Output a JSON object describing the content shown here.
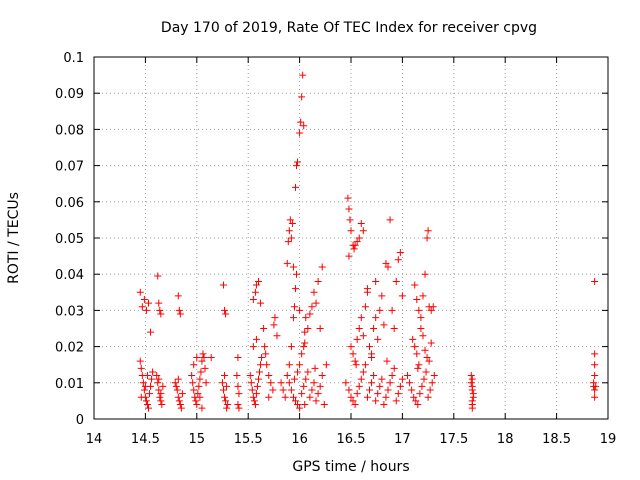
{
  "chart_data": {
    "type": "scatter",
    "title": "Day 170 of 2019, Rate Of TEC Index for receiver cpvg",
    "xlabel": "GPS time / hours",
    "ylabel": "ROTI / TECUs",
    "xlim": [
      14,
      19
    ],
    "ylim": [
      0,
      0.1
    ],
    "x_ticks": [
      14,
      14.5,
      15,
      15.5,
      16,
      16.5,
      17,
      17.5,
      18,
      18.5,
      19
    ],
    "x_tick_labels": [
      "14",
      "14.5",
      "15",
      "15.5",
      "16",
      "16.5",
      "17",
      "17.5",
      "18",
      "18.5",
      "19"
    ],
    "y_ticks": [
      0,
      0.01,
      0.02,
      0.03,
      0.04,
      0.05,
      0.06,
      0.07,
      0.08,
      0.09,
      0.1
    ],
    "y_tick_labels": [
      "0",
      "0.01",
      "0.02",
      "0.03",
      "0.04",
      "0.05",
      "0.06",
      "0.07",
      "0.08",
      "0.09",
      "0.1"
    ],
    "grid": true,
    "marker": "plus",
    "color": "#ff0000",
    "series": [
      {
        "name": "ROTI",
        "points": [
          [
            14.45,
            0.035
          ],
          [
            14.47,
            0.031
          ],
          [
            14.49,
            0.033
          ],
          [
            14.51,
            0.03
          ],
          [
            14.53,
            0.032
          ],
          [
            14.55,
            0.024
          ],
          [
            14.45,
            0.016
          ],
          [
            14.46,
            0.014
          ],
          [
            14.47,
            0.012
          ],
          [
            14.48,
            0.01
          ],
          [
            14.49,
            0.008
          ],
          [
            14.5,
            0.006
          ],
          [
            14.51,
            0.005
          ],
          [
            14.52,
            0.004
          ],
          [
            14.53,
            0.003
          ],
          [
            14.54,
            0.007
          ],
          [
            14.55,
            0.009
          ],
          [
            14.56,
            0.011
          ],
          [
            14.57,
            0.013
          ],
          [
            14.46,
            0.006
          ],
          [
            14.5,
            0.009
          ],
          [
            14.52,
            0.012
          ],
          [
            14.62,
            0.0395
          ],
          [
            14.63,
            0.032
          ],
          [
            14.64,
            0.03
          ],
          [
            14.65,
            0.029
          ],
          [
            14.61,
            0.012
          ],
          [
            14.62,
            0.01
          ],
          [
            14.63,
            0.008
          ],
          [
            14.64,
            0.006
          ],
          [
            14.65,
            0.005
          ],
          [
            14.66,
            0.004
          ],
          [
            14.67,
            0.009
          ],
          [
            14.63,
            0.011
          ],
          [
            14.65,
            0.007
          ],
          [
            14.82,
            0.034
          ],
          [
            14.83,
            0.03
          ],
          [
            14.84,
            0.029
          ],
          [
            14.79,
            0.01
          ],
          [
            14.8,
            0.009
          ],
          [
            14.81,
            0.008
          ],
          [
            14.82,
            0.006
          ],
          [
            14.83,
            0.005
          ],
          [
            14.84,
            0.004
          ],
          [
            14.85,
            0.003
          ],
          [
            14.86,
            0.007
          ],
          [
            14.82,
            0.011
          ],
          [
            14.95,
            0.012
          ],
          [
            14.96,
            0.01
          ],
          [
            14.97,
            0.008
          ],
          [
            14.98,
            0.006
          ],
          [
            14.99,
            0.005
          ],
          [
            15.0,
            0.004
          ],
          [
            15.01,
            0.007
          ],
          [
            15.02,
            0.009
          ],
          [
            15.03,
            0.011
          ],
          [
            15.04,
            0.013
          ],
          [
            15.05,
            0.016
          ],
          [
            15.06,
            0.018
          ],
          [
            15.07,
            0.017
          ],
          [
            15.08,
            0.014
          ],
          [
            15.09,
            0.01
          ],
          [
            15.03,
            0.006
          ],
          [
            15.05,
            0.003
          ],
          [
            14.97,
            0.015
          ],
          [
            15.0,
            0.017
          ],
          [
            15.14,
            0.017
          ],
          [
            15.26,
            0.037
          ],
          [
            15.27,
            0.03
          ],
          [
            15.28,
            0.029
          ],
          [
            15.25,
            0.01
          ],
          [
            15.26,
            0.008
          ],
          [
            15.27,
            0.006
          ],
          [
            15.28,
            0.005
          ],
          [
            15.29,
            0.003
          ],
          [
            15.3,
            0.004
          ],
          [
            15.27,
            0.012
          ],
          [
            15.29,
            0.009
          ],
          [
            15.4,
            0.017
          ],
          [
            15.39,
            0.012
          ],
          [
            15.4,
            0.009
          ],
          [
            15.41,
            0.007
          ],
          [
            15.4,
            0.004
          ],
          [
            15.41,
            0.003
          ],
          [
            15.52,
            0.012
          ],
          [
            15.53,
            0.01
          ],
          [
            15.54,
            0.008
          ],
          [
            15.55,
            0.006
          ],
          [
            15.56,
            0.005
          ],
          [
            15.57,
            0.004
          ],
          [
            15.58,
            0.007
          ],
          [
            15.59,
            0.009
          ],
          [
            15.6,
            0.011
          ],
          [
            15.61,
            0.013
          ],
          [
            15.62,
            0.015
          ],
          [
            15.63,
            0.017
          ],
          [
            15.55,
            0.02
          ],
          [
            15.58,
            0.022
          ],
          [
            15.55,
            0.033
          ],
          [
            15.57,
            0.035
          ],
          [
            15.58,
            0.037
          ],
          [
            15.6,
            0.038
          ],
          [
            15.62,
            0.032
          ],
          [
            15.65,
            0.025
          ],
          [
            15.66,
            0.02
          ],
          [
            15.67,
            0.018
          ],
          [
            15.68,
            0.015
          ],
          [
            15.7,
            0.012
          ],
          [
            15.72,
            0.01
          ],
          [
            15.74,
            0.008
          ],
          [
            15.7,
            0.006
          ],
          [
            15.75,
            0.026
          ],
          [
            15.76,
            0.028
          ],
          [
            15.78,
            0.023
          ],
          [
            15.82,
            0.01
          ],
          [
            15.84,
            0.008
          ],
          [
            15.86,
            0.006
          ],
          [
            15.88,
            0.012
          ],
          [
            15.9,
            0.015
          ],
          [
            15.92,
            0.02
          ],
          [
            15.94,
            0.028
          ],
          [
            15.95,
            0.031
          ],
          [
            15.96,
            0.036
          ],
          [
            15.97,
            0.04
          ],
          [
            15.88,
            0.043
          ],
          [
            15.89,
            0.049
          ],
          [
            15.9,
            0.052
          ],
          [
            15.91,
            0.055
          ],
          [
            15.92,
            0.05
          ],
          [
            15.93,
            0.054
          ],
          [
            15.94,
            0.042
          ],
          [
            15.96,
            0.064
          ],
          [
            15.97,
            0.07
          ],
          [
            15.98,
            0.071
          ],
          [
            16.0,
            0.079
          ],
          [
            16.01,
            0.082
          ],
          [
            16.02,
            0.089
          ],
          [
            16.03,
            0.095
          ],
          [
            16.04,
            0.081
          ],
          [
            15.98,
            0.013
          ],
          [
            16.0,
            0.015
          ],
          [
            16.02,
            0.018
          ],
          [
            16.04,
            0.02
          ],
          [
            16.05,
            0.024
          ],
          [
            16.06,
            0.028
          ],
          [
            16.0,
            0.03
          ],
          [
            16.05,
            0.021
          ],
          [
            16.08,
            0.025
          ],
          [
            16.1,
            0.029
          ],
          [
            16.12,
            0.031
          ],
          [
            16.14,
            0.035
          ],
          [
            16.16,
            0.032
          ],
          [
            16.18,
            0.038
          ],
          [
            16.2,
            0.025
          ],
          [
            16.22,
            0.042
          ],
          [
            15.9,
            0.01
          ],
          [
            15.92,
            0.008
          ],
          [
            15.94,
            0.006
          ],
          [
            15.96,
            0.005
          ],
          [
            15.98,
            0.004
          ],
          [
            16.0,
            0.003
          ],
          [
            16.02,
            0.007
          ],
          [
            16.04,
            0.009
          ],
          [
            16.06,
            0.011
          ],
          [
            16.08,
            0.013
          ],
          [
            16.1,
            0.006
          ],
          [
            16.12,
            0.008
          ],
          [
            16.14,
            0.01
          ],
          [
            16.16,
            0.005
          ],
          [
            16.18,
            0.007
          ],
          [
            16.2,
            0.009
          ],
          [
            16.22,
            0.012
          ],
          [
            16.24,
            0.004
          ],
          [
            16.26,
            0.015
          ],
          [
            15.95,
            0.011
          ],
          [
            16.05,
            0.004
          ],
          [
            16.15,
            0.014
          ],
          [
            16.47,
            0.061
          ],
          [
            16.48,
            0.058
          ],
          [
            16.49,
            0.055
          ],
          [
            16.5,
            0.052
          ],
          [
            16.52,
            0.048
          ],
          [
            16.53,
            0.047
          ],
          [
            16.54,
            0.048
          ],
          [
            16.56,
            0.049
          ],
          [
            16.58,
            0.05
          ],
          [
            16.6,
            0.054
          ],
          [
            16.62,
            0.052
          ],
          [
            16.48,
            0.045
          ],
          [
            16.5,
            0.02
          ],
          [
            16.52,
            0.018
          ],
          [
            16.54,
            0.016
          ],
          [
            16.56,
            0.022
          ],
          [
            16.58,
            0.025
          ],
          [
            16.6,
            0.028
          ],
          [
            16.62,
            0.023
          ],
          [
            16.64,
            0.031
          ],
          [
            16.66,
            0.035
          ],
          [
            16.68,
            0.02
          ],
          [
            16.7,
            0.018
          ],
          [
            16.72,
            0.025
          ],
          [
            16.74,
            0.028
          ],
          [
            16.76,
            0.022
          ],
          [
            16.78,
            0.03
          ],
          [
            16.8,
            0.034
          ],
          [
            16.82,
            0.026
          ],
          [
            16.84,
            0.043
          ],
          [
            16.86,
            0.042
          ],
          [
            16.88,
            0.055
          ],
          [
            16.9,
            0.03
          ],
          [
            16.92,
            0.025
          ],
          [
            16.94,
            0.038
          ],
          [
            16.96,
            0.044
          ],
          [
            16.98,
            0.046
          ],
          [
            17.0,
            0.034
          ],
          [
            16.66,
            0.036
          ],
          [
            16.74,
            0.038
          ],
          [
            16.45,
            0.01
          ],
          [
            16.48,
            0.008
          ],
          [
            16.5,
            0.006
          ],
          [
            16.52,
            0.005
          ],
          [
            16.54,
            0.004
          ],
          [
            16.56,
            0.007
          ],
          [
            16.58,
            0.009
          ],
          [
            16.6,
            0.011
          ],
          [
            16.62,
            0.013
          ],
          [
            16.64,
            0.015
          ],
          [
            16.66,
            0.006
          ],
          [
            16.68,
            0.008
          ],
          [
            16.7,
            0.01
          ],
          [
            16.72,
            0.012
          ],
          [
            16.74,
            0.005
          ],
          [
            16.76,
            0.007
          ],
          [
            16.78,
            0.009
          ],
          [
            16.8,
            0.011
          ],
          [
            16.82,
            0.004
          ],
          [
            16.84,
            0.006
          ],
          [
            16.86,
            0.008
          ],
          [
            16.88,
            0.01
          ],
          [
            16.9,
            0.012
          ],
          [
            16.92,
            0.014
          ],
          [
            16.94,
            0.005
          ],
          [
            16.96,
            0.007
          ],
          [
            16.98,
            0.009
          ],
          [
            17.0,
            0.011
          ],
          [
            16.55,
            0.015
          ],
          [
            16.7,
            0.017
          ],
          [
            16.85,
            0.016
          ],
          [
            17.12,
            0.037
          ],
          [
            17.14,
            0.033
          ],
          [
            17.16,
            0.03
          ],
          [
            17.18,
            0.028
          ],
          [
            17.2,
            0.034
          ],
          [
            17.22,
            0.04
          ],
          [
            17.24,
            0.05
          ],
          [
            17.25,
            0.052
          ],
          [
            17.26,
            0.031
          ],
          [
            17.28,
            0.03
          ],
          [
            17.3,
            0.031
          ],
          [
            17.1,
            0.022
          ],
          [
            17.12,
            0.02
          ],
          [
            17.14,
            0.018
          ],
          [
            17.16,
            0.015
          ],
          [
            17.18,
            0.025
          ],
          [
            17.2,
            0.023
          ],
          [
            17.22,
            0.019
          ],
          [
            17.24,
            0.017
          ],
          [
            17.26,
            0.016
          ],
          [
            17.28,
            0.021
          ],
          [
            17.05,
            0.012
          ],
          [
            17.07,
            0.01
          ],
          [
            17.09,
            0.008
          ],
          [
            17.11,
            0.006
          ],
          [
            17.13,
            0.005
          ],
          [
            17.15,
            0.004
          ],
          [
            17.17,
            0.007
          ],
          [
            17.19,
            0.009
          ],
          [
            17.21,
            0.011
          ],
          [
            17.23,
            0.013
          ],
          [
            17.25,
            0.006
          ],
          [
            17.27,
            0.008
          ],
          [
            17.29,
            0.01
          ],
          [
            17.31,
            0.012
          ],
          [
            17.15,
            0.014
          ],
          [
            17.67,
            0.012
          ],
          [
            17.67,
            0.01
          ],
          [
            17.68,
            0.009
          ],
          [
            17.68,
            0.008
          ],
          [
            17.69,
            0.007
          ],
          [
            17.69,
            0.006
          ],
          [
            17.68,
            0.005
          ],
          [
            17.68,
            0.004
          ],
          [
            17.68,
            0.003
          ],
          [
            17.68,
            0.011
          ],
          [
            18.87,
            0.038
          ],
          [
            18.87,
            0.018
          ],
          [
            18.87,
            0.015
          ],
          [
            18.87,
            0.012
          ],
          [
            18.86,
            0.01
          ],
          [
            18.86,
            0.009
          ],
          [
            18.87,
            0.008
          ],
          [
            18.88,
            0.009
          ],
          [
            18.87,
            0.006
          ]
        ]
      }
    ]
  }
}
